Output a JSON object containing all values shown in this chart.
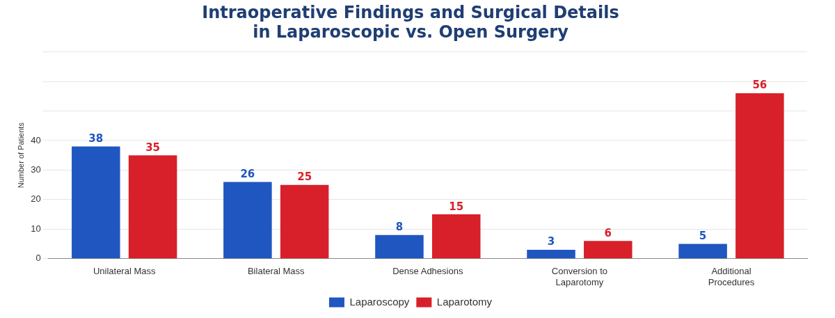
{
  "chart_data": {
    "type": "bar",
    "title": "Intraoperative Findings and Surgical Details\nin Laparoscopic vs. Open Surgery",
    "ylabel": "Number of Patients",
    "categories": [
      "Unilateral Mass",
      "Bilateral Mass",
      "Dense Adhesions",
      "Conversion to Laparotomy",
      "Additional Procedures"
    ],
    "series": [
      {
        "name": "Laparoscopy",
        "color": "#1f56c0",
        "values": [
          38,
          26,
          8,
          3,
          5
        ]
      },
      {
        "name": "Laparotomy",
        "color": "#d8202a",
        "values": [
          35,
          25,
          15,
          6,
          56
        ]
      }
    ],
    "ylim": [
      0,
      70
    ],
    "yticks": [
      0,
      10,
      20,
      30,
      40,
      {
        "value": 50,
        "label": null
      },
      {
        "value": 60,
        "label": null
      },
      {
        "value": 70,
        "label": null
      }
    ],
    "grid": "y",
    "legend": "bottom",
    "data_labels": true
  }
}
